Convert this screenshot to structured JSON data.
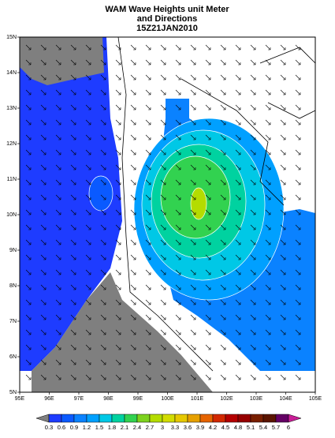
{
  "map": {
    "title": [
      "WAM Wave Heights unit Meter",
      "and Directions",
      "15Z21JAN2010"
    ],
    "lon_labels": [
      "95E",
      "96E",
      "97E",
      "98E",
      "99E",
      "100E",
      "101E",
      "102E",
      "103E",
      "104E",
      "105E"
    ],
    "lat_labels": [
      "5N",
      "6N",
      "7N",
      "8N",
      "9N",
      "10N",
      "11N",
      "12N",
      "13N",
      "14N",
      "15N"
    ],
    "colorbar": {
      "levels": [
        0.3,
        0.6,
        0.9,
        1.2,
        1.5,
        1.8,
        2.1,
        2.4,
        2.7,
        3,
        3.3,
        3.6,
        3.9,
        4.2,
        4.5,
        4.8,
        5.1,
        5.4,
        5.7,
        6
      ],
      "colors": [
        "#7f7f7f",
        "#1e3cff",
        "#0a5aff",
        "#0a82ff",
        "#00a0ff",
        "#00c8e6",
        "#00d2a0",
        "#32d250",
        "#7dd21e",
        "#b4dc00",
        "#d2dc00",
        "#e6c800",
        "#e6a000",
        "#e66400",
        "#d22800",
        "#b40000",
        "#960000",
        "#781e00",
        "#5a1400",
        "#640064",
        "#c81e96"
      ]
    }
  }
}
